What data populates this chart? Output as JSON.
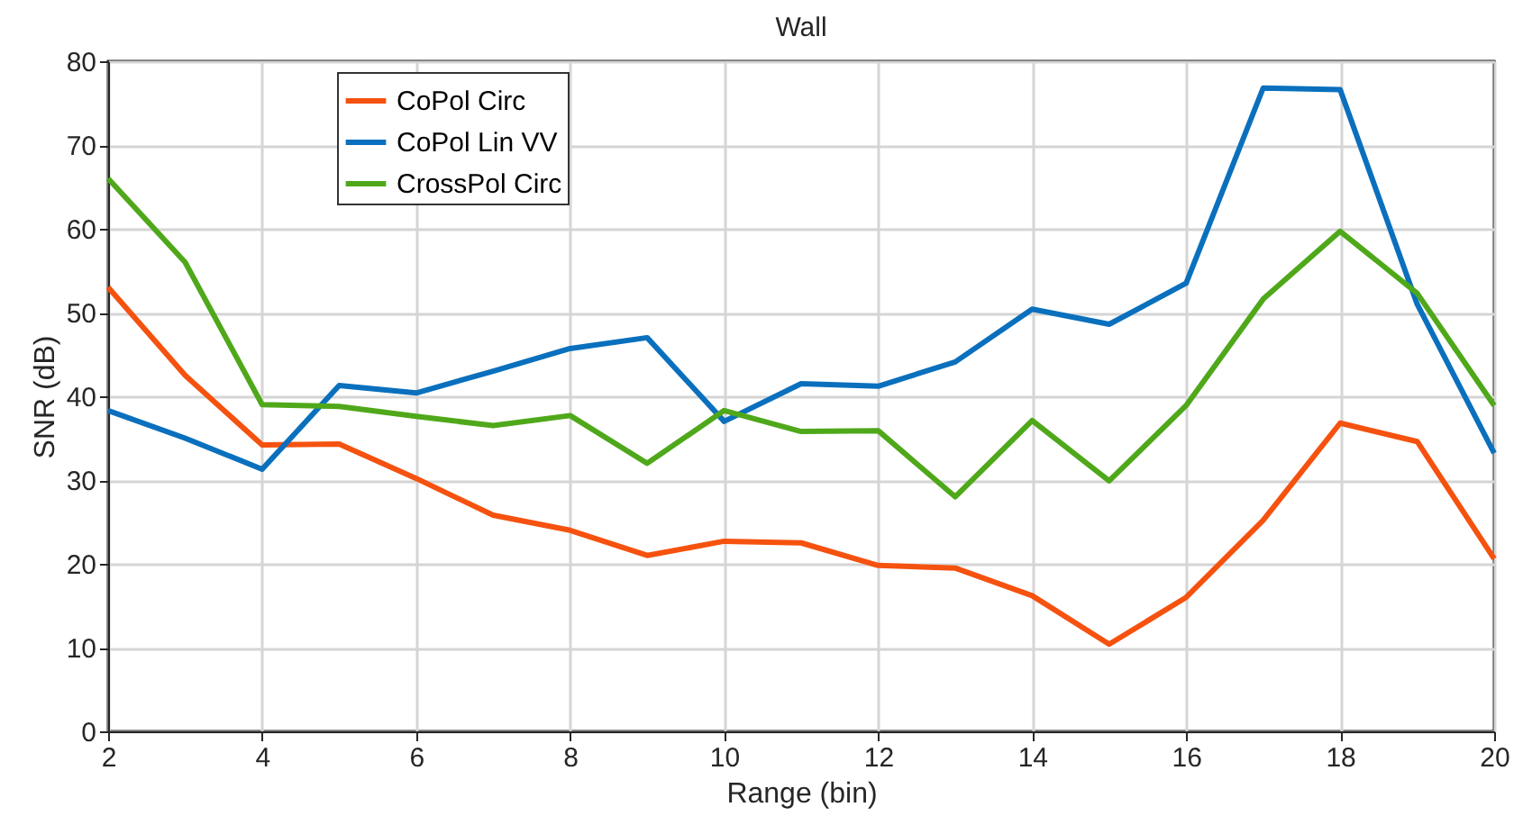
{
  "chart_data": {
    "type": "line",
    "title": "Wall",
    "xlabel": "Range (bin)",
    "ylabel": "SNR (dB)",
    "x": [
      2,
      3,
      4,
      5,
      6,
      7,
      8,
      9,
      10,
      11,
      12,
      13,
      14,
      15,
      16,
      17,
      18,
      19,
      20
    ],
    "series": [
      {
        "name": "CoPol Circ",
        "color": "#f5520f",
        "values": [
          53,
          42.5,
          34.2,
          34.3,
          30.2,
          25.8,
          24,
          21,
          22.7,
          22.5,
          19.8,
          19.5,
          16.2,
          10.4,
          16,
          25.2,
          36.8,
          34.6,
          20.6
        ]
      },
      {
        "name": "CoPol Lin VV",
        "color": "#0a70bd",
        "values": [
          38.3,
          35,
          31.3,
          41.3,
          40.4,
          43,
          45.7,
          47,
          37,
          41.5,
          41.2,
          44.1,
          50.4,
          48.6,
          53.5,
          76.8,
          76.6,
          51,
          33.2
        ]
      },
      {
        "name": "CrossPol Circ",
        "color": "#4fa81a",
        "values": [
          66,
          56,
          39,
          38.8,
          37.6,
          36.5,
          37.7,
          32,
          38.3,
          35.8,
          35.9,
          28,
          37.1,
          29.9,
          38.9,
          51.6,
          59.7,
          52.3,
          38.9
        ]
      }
    ],
    "xlim": [
      2,
      20
    ],
    "xticks": [
      2,
      4,
      6,
      8,
      10,
      12,
      14,
      16,
      18,
      20
    ],
    "ylim": [
      0,
      80
    ],
    "yticks": [
      0,
      10,
      20,
      30,
      40,
      50,
      60,
      70,
      80
    ],
    "grid": true,
    "legend": "top left",
    "marker": "none",
    "line_style": "solid"
  }
}
